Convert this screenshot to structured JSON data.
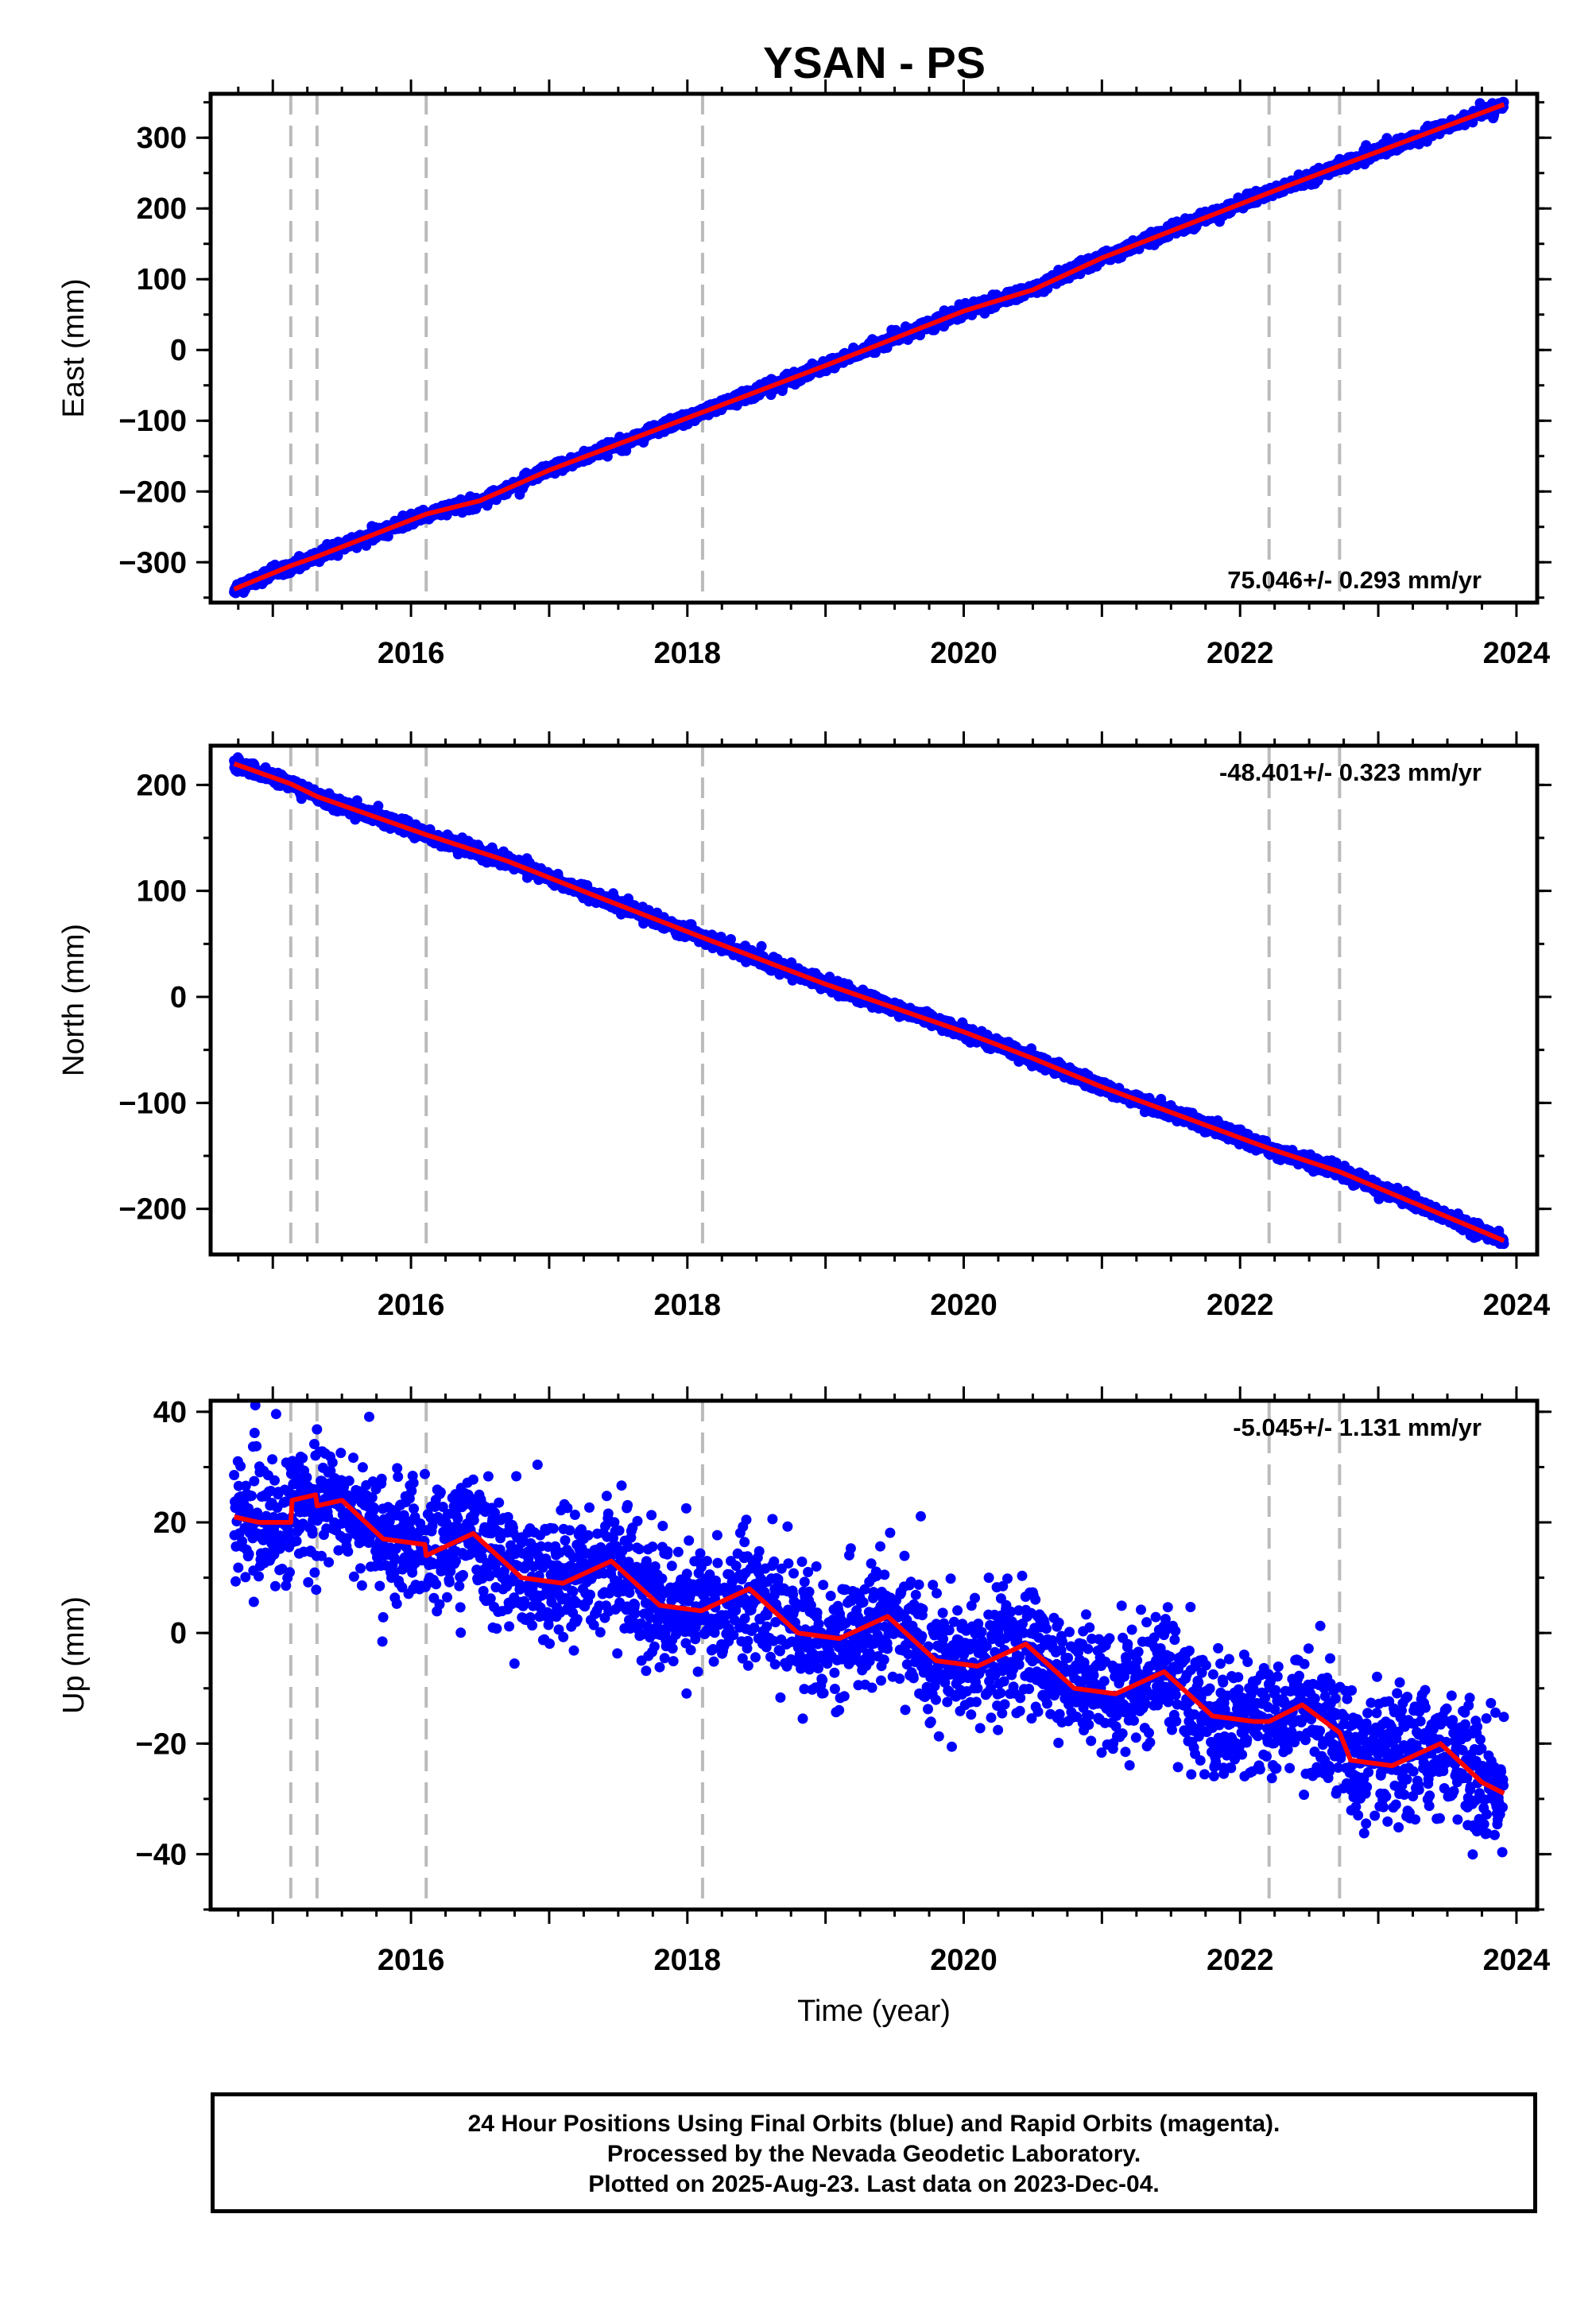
{
  "title": "YSAN - PS",
  "colors": {
    "final": "#0000ff",
    "model": "#ff0000",
    "break_lines": "#bbbbbb"
  },
  "footer": {
    "line1": "24 Hour Positions Using Final Orbits (blue) and Rapid Orbits (magenta).",
    "line2": "Processed by the Nevada Geodetic Laboratory.",
    "line3": "Plotted on 2025-Aug-23. Last data on 2023-Dec-04."
  },
  "chart_data": [
    {
      "type": "scatter",
      "panel": "east",
      "ylabel": "East (mm)",
      "xlabel": "",
      "xlim": [
        2014.55,
        2024.15
      ],
      "ylim": [
        -357,
        362
      ],
      "x_ticks": [
        2016,
        2018,
        2020,
        2022,
        2024
      ],
      "y_ticks": [
        -300,
        -200,
        -100,
        0,
        100,
        200,
        300
      ],
      "break_lines": [
        2015.13,
        2015.32,
        2016.11,
        2018.11,
        2022.21,
        2022.72
      ],
      "rate_label": "75.046+/- 0.293 mm/yr",
      "rate_position": "bottom-right",
      "series": [
        {
          "name": "Final Orbits",
          "role": "points",
          "noise": 4,
          "anchors": [
            [
              2014.72,
              -338
            ],
            [
              2015.13,
              -305
            ],
            [
              2015.32,
              -292
            ],
            [
              2016.11,
              -232
            ],
            [
              2016.5,
              -213
            ],
            [
              2017.0,
              -170
            ],
            [
              2018.11,
              -88
            ],
            [
              2019.0,
              -22
            ],
            [
              2020.0,
              55
            ],
            [
              2020.5,
              85
            ],
            [
              2021.0,
              130
            ],
            [
              2022.21,
              222
            ],
            [
              2022.72,
              260
            ],
            [
              2023.91,
              347
            ]
          ]
        },
        {
          "name": "Model",
          "role": "line",
          "anchors": [
            [
              2014.72,
              -338
            ],
            [
              2015.13,
              -305
            ],
            [
              2015.32,
              -292
            ],
            [
              2016.11,
              -232
            ],
            [
              2016.5,
              -213
            ],
            [
              2017.0,
              -170
            ],
            [
              2018.11,
              -88
            ],
            [
              2019.0,
              -22
            ],
            [
              2020.0,
              55
            ],
            [
              2020.5,
              85
            ],
            [
              2021.0,
              130
            ],
            [
              2022.21,
              222
            ],
            [
              2022.72,
              260
            ],
            [
              2023.91,
              347
            ]
          ]
        }
      ]
    },
    {
      "type": "scatter",
      "panel": "north",
      "ylabel": "North (mm)",
      "xlabel": "",
      "xlim": [
        2014.55,
        2024.15
      ],
      "ylim": [
        -243,
        237
      ],
      "x_ticks": [
        2016,
        2018,
        2020,
        2022,
        2024
      ],
      "y_ticks": [
        -200,
        -100,
        0,
        100,
        200
      ],
      "break_lines": [
        2015.13,
        2015.32,
        2016.11,
        2018.11,
        2022.21,
        2022.72
      ],
      "rate_label": "-48.401+/- 0.323 mm/yr",
      "rate_position": "top-right",
      "series": [
        {
          "name": "Final Orbits",
          "role": "points",
          "noise": 3,
          "anchors": [
            [
              2014.72,
              220
            ],
            [
              2015.13,
              201
            ],
            [
              2015.32,
              189
            ],
            [
              2016.11,
              153
            ],
            [
              2016.7,
              128
            ],
            [
              2017.3,
              97
            ],
            [
              2018.11,
              56
            ],
            [
              2019.0,
              12
            ],
            [
              2020.0,
              -33
            ],
            [
              2020.5,
              -58
            ],
            [
              2021.0,
              -85
            ],
            [
              2022.21,
              -143
            ],
            [
              2022.72,
              -165
            ],
            [
              2023.91,
              -230
            ]
          ]
        },
        {
          "name": "Model",
          "role": "line",
          "anchors": [
            [
              2014.72,
              220
            ],
            [
              2015.13,
              201
            ],
            [
              2015.32,
              189
            ],
            [
              2016.11,
              153
            ],
            [
              2016.7,
              128
            ],
            [
              2017.3,
              97
            ],
            [
              2018.11,
              56
            ],
            [
              2019.0,
              12
            ],
            [
              2020.0,
              -33
            ],
            [
              2020.5,
              -58
            ],
            [
              2021.0,
              -85
            ],
            [
              2022.21,
              -143
            ],
            [
              2022.72,
              -165
            ],
            [
              2023.91,
              -230
            ]
          ]
        }
      ]
    },
    {
      "type": "scatter",
      "panel": "up",
      "ylabel": "Up (mm)",
      "xlabel": "Time (year)",
      "xlim": [
        2014.55,
        2024.15
      ],
      "ylim": [
        -50,
        42
      ],
      "x_ticks": [
        2016,
        2018,
        2020,
        2022,
        2024
      ],
      "y_ticks": [
        -40,
        -20,
        0,
        20,
        40
      ],
      "break_lines": [
        2015.13,
        2015.32,
        2016.11,
        2018.11,
        2022.21,
        2022.72
      ],
      "rate_label": "-5.045+/- 1.131 mm/yr",
      "rate_position": "top-right",
      "series": [
        {
          "name": "Final Orbits",
          "role": "points",
          "noise": 5.5,
          "anchors": [
            [
              2014.72,
              21
            ],
            [
              2014.9,
              20
            ],
            [
              2015.13,
              20
            ],
            [
              2015.14,
              24
            ],
            [
              2015.31,
              25
            ],
            [
              2015.32,
              23
            ],
            [
              2015.5,
              24
            ],
            [
              2015.8,
              17
            ],
            [
              2016.1,
              16
            ],
            [
              2016.11,
              14
            ],
            [
              2016.45,
              18
            ],
            [
              2016.8,
              10
            ],
            [
              2017.1,
              9
            ],
            [
              2017.45,
              13
            ],
            [
              2017.8,
              5
            ],
            [
              2018.1,
              4
            ],
            [
              2018.45,
              8
            ],
            [
              2018.8,
              0
            ],
            [
              2019.1,
              -1
            ],
            [
              2019.45,
              3
            ],
            [
              2019.8,
              -5
            ],
            [
              2020.1,
              -6
            ],
            [
              2020.45,
              -2
            ],
            [
              2020.8,
              -10
            ],
            [
              2021.1,
              -11
            ],
            [
              2021.45,
              -7
            ],
            [
              2021.8,
              -15
            ],
            [
              2022.1,
              -16
            ],
            [
              2022.21,
              -16
            ],
            [
              2022.45,
              -13
            ],
            [
              2022.72,
              -18
            ],
            [
              2022.8,
              -23
            ],
            [
              2023.1,
              -24
            ],
            [
              2023.45,
              -20
            ],
            [
              2023.75,
              -27
            ],
            [
              2023.91,
              -29
            ]
          ]
        },
        {
          "name": "Model",
          "role": "line",
          "anchors": [
            [
              2014.72,
              21
            ],
            [
              2014.9,
              20
            ],
            [
              2015.13,
              20
            ],
            [
              2015.14,
              24
            ],
            [
              2015.31,
              25
            ],
            [
              2015.32,
              23
            ],
            [
              2015.5,
              24
            ],
            [
              2015.8,
              17
            ],
            [
              2016.1,
              16
            ],
            [
              2016.11,
              14
            ],
            [
              2016.45,
              18
            ],
            [
              2016.8,
              10
            ],
            [
              2017.1,
              9
            ],
            [
              2017.45,
              13
            ],
            [
              2017.8,
              5
            ],
            [
              2018.1,
              4
            ],
            [
              2018.45,
              8
            ],
            [
              2018.8,
              0
            ],
            [
              2019.1,
              -1
            ],
            [
              2019.45,
              3
            ],
            [
              2019.8,
              -5
            ],
            [
              2020.1,
              -6
            ],
            [
              2020.45,
              -2
            ],
            [
              2020.8,
              -10
            ],
            [
              2021.1,
              -11
            ],
            [
              2021.45,
              -7
            ],
            [
              2021.8,
              -15
            ],
            [
              2022.1,
              -16
            ],
            [
              2022.21,
              -16
            ],
            [
              2022.45,
              -13
            ],
            [
              2022.72,
              -18
            ],
            [
              2022.8,
              -23
            ],
            [
              2023.1,
              -24
            ],
            [
              2023.45,
              -20
            ],
            [
              2023.75,
              -27
            ],
            [
              2023.91,
              -29
            ]
          ]
        }
      ]
    }
  ]
}
